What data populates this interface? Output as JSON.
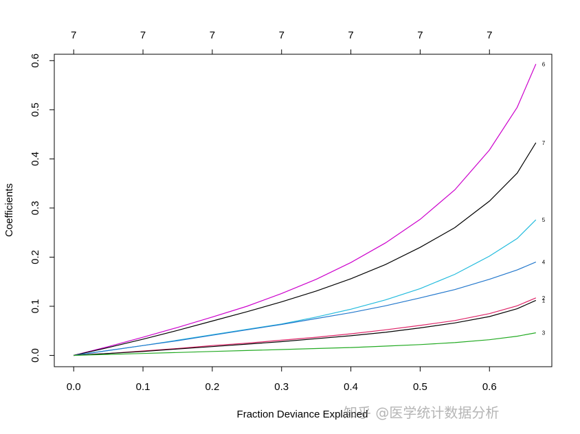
{
  "chart_data": {
    "type": "line",
    "xlabel": "Fraction Deviance Explained",
    "ylabel": "Coefficients",
    "xlim": [
      -0.028,
      0.69
    ],
    "ylim": [
      -0.023,
      0.613
    ],
    "x_ticks": [
      "0.0",
      "0.1",
      "0.2",
      "0.3",
      "0.4",
      "0.5",
      "0.6"
    ],
    "x_tick_values": [
      0.0,
      0.1,
      0.2,
      0.3,
      0.4,
      0.5,
      0.6
    ],
    "y_ticks": [
      "0.0",
      "0.1",
      "0.2",
      "0.3",
      "0.4",
      "0.5",
      "0.6"
    ],
    "y_tick_values": [
      0.0,
      0.1,
      0.2,
      0.3,
      0.4,
      0.5,
      0.6
    ],
    "top_ticks": [
      "7",
      "7",
      "7",
      "7",
      "7",
      "7",
      "7"
    ],
    "top_tick_values": [
      0.0,
      0.1,
      0.2,
      0.3,
      0.4,
      0.5,
      0.6
    ],
    "grid": false,
    "x": [
      0.0,
      0.05,
      0.1,
      0.15,
      0.2,
      0.25,
      0.3,
      0.35,
      0.4,
      0.45,
      0.5,
      0.55,
      0.6,
      0.64,
      0.667
    ],
    "series": [
      {
        "label": "6",
        "color": "#CC00CC",
        "values": [
          0.0,
          0.018,
          0.037,
          0.057,
          0.078,
          0.1,
          0.126,
          0.155,
          0.189,
          0.229,
          0.277,
          0.337,
          0.418,
          0.505,
          0.593
        ]
      },
      {
        "label": "7",
        "color": "#000000",
        "values": [
          0.0,
          0.016,
          0.033,
          0.051,
          0.07,
          0.089,
          0.109,
          0.131,
          0.156,
          0.185,
          0.22,
          0.26,
          0.314,
          0.371,
          0.433
        ]
      },
      {
        "label": "5",
        "color": "#22BBDD",
        "values": [
          0.0,
          0.01,
          0.02,
          0.031,
          0.042,
          0.053,
          0.064,
          0.078,
          0.094,
          0.113,
          0.136,
          0.165,
          0.202,
          0.238,
          0.276
        ]
      },
      {
        "label": "4",
        "color": "#2277CC",
        "values": [
          0.0,
          0.01,
          0.02,
          0.03,
          0.041,
          0.052,
          0.063,
          0.075,
          0.087,
          0.101,
          0.117,
          0.134,
          0.155,
          0.174,
          0.19
        ]
      },
      {
        "label": "2",
        "color": "#DD2266",
        "values": [
          0.0,
          0.004,
          0.009,
          0.014,
          0.02,
          0.025,
          0.031,
          0.037,
          0.044,
          0.052,
          0.061,
          0.071,
          0.085,
          0.101,
          0.117
        ]
      },
      {
        "label": "1",
        "color": "#000000",
        "values": [
          0.0,
          0.004,
          0.008,
          0.013,
          0.018,
          0.023,
          0.028,
          0.034,
          0.04,
          0.047,
          0.056,
          0.066,
          0.079,
          0.095,
          0.112
        ]
      },
      {
        "label": "3",
        "color": "#22AA22",
        "values": [
          0.0,
          0.002,
          0.004,
          0.006,
          0.008,
          0.01,
          0.012,
          0.014,
          0.016,
          0.019,
          0.022,
          0.026,
          0.032,
          0.039,
          0.046
        ]
      }
    ]
  },
  "watermark": "知乎 @医学统计数据分析"
}
